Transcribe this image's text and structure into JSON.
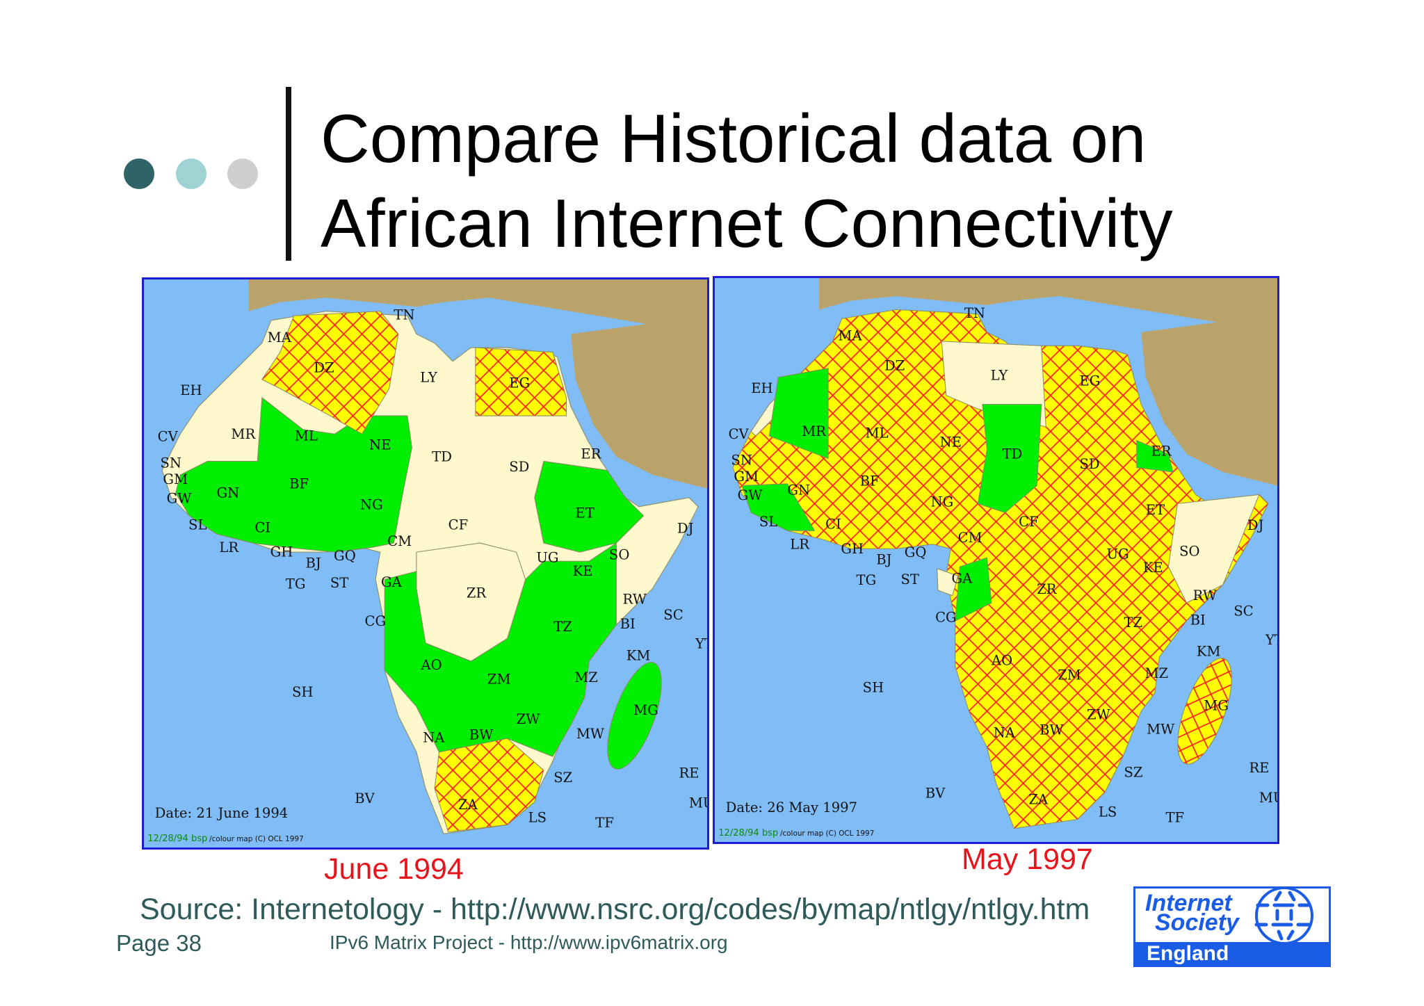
{
  "slide": {
    "title_line1": "Compare Historical data on",
    "title_line2": "African Internet Connectivity",
    "bullet_colors": [
      "#2e6467",
      "#9fd3d3",
      "#cfcfcf"
    ],
    "caption_left": "June 1994",
    "caption_right": "May 1997",
    "source": "Source: Internetology - http://www.nsrc.org/codes/bymap/ntlgy/ntlgy.htm",
    "page": "Page 38",
    "footer": "IPv6 Matrix Project - http://www.ipv6matrix.org"
  },
  "logo": {
    "line1": "Internet",
    "line2": "Society",
    "line3": "England",
    "color": "#1a5ce6"
  },
  "colors": {
    "sea": "#80bdf7",
    "land_other": "#b9a36a",
    "no_connectivity": "#fff8cc",
    "green": "#00ee00",
    "hatch_fill": "#ffff00",
    "hatch_line": "#ff2020"
  },
  "maps": [
    {
      "date": "Date: 21 June 1994",
      "credit_green": "12/28/94 bsp",
      "credit": "/colour map (C) OCL 1997",
      "country_codes": [
        "TN",
        "MA",
        "DZ",
        "LY",
        "EG",
        "EH",
        "MR",
        "ML",
        "NE",
        "TD",
        "SD",
        "ER",
        "CV",
        "SN",
        "GM",
        "GW",
        "GN",
        "BF",
        "NG",
        "ET",
        "DJ",
        "SL",
        "CI",
        "CF",
        "CM",
        "LR",
        "GH",
        "BJ",
        "GQ",
        "UG",
        "KE",
        "SO",
        "TG",
        "ST",
        "GA",
        "ZR",
        "RW",
        "BI",
        "SC",
        "CG",
        "TZ",
        "KM",
        "YT",
        "AO",
        "ZM",
        "MZ",
        "SH",
        "MG",
        "ZW",
        "NA",
        "BW",
        "MW",
        "RE",
        "SZ",
        "BV",
        "MU",
        "ZA",
        "LS",
        "TF"
      ],
      "hatched": [
        "DZ",
        "EG",
        "ZA"
      ],
      "green": [
        "MR-west belt",
        "ML",
        "NE",
        "NG",
        "BF",
        "CI",
        "GH",
        "SN",
        "GN",
        "CM",
        "ET",
        "UG",
        "KE",
        "TZ",
        "AO",
        "ZM",
        "ZW",
        "NA",
        "BW",
        "MZ",
        "MW",
        "MG"
      ]
    },
    {
      "date": "Date: 26 May 1997",
      "credit_green": "12/28/94 bsp",
      "credit": "/colour map (C) OCL 1997",
      "country_codes": [
        "TN",
        "MA",
        "DZ",
        "LY",
        "EG",
        "EH",
        "MR",
        "ML",
        "NE",
        "TD",
        "SD",
        "ER",
        "CV",
        "SN",
        "GM",
        "GW",
        "GN",
        "BF",
        "NG",
        "ET",
        "DJ",
        "SL",
        "CI",
        "CF",
        "CM",
        "LR",
        "GH",
        "BJ",
        "GQ",
        "UG",
        "KE",
        "SO",
        "TG",
        "ST",
        "GA",
        "ZR",
        "RW",
        "BI",
        "SC",
        "CG",
        "TZ",
        "KM",
        "YT",
        "AO",
        "ZM",
        "MZ",
        "SH",
        "MG",
        "ZW",
        "NA",
        "BW",
        "MW",
        "RE",
        "SZ",
        "BV",
        "MU",
        "ZA",
        "LS",
        "TF"
      ],
      "hatched": [
        "MA",
        "DZ",
        "EG",
        "ML",
        "NE",
        "SD",
        "ET",
        "NG",
        "BF",
        "CF",
        "CM",
        "ZR",
        "KE",
        "TZ",
        "AO",
        "ZM",
        "MZ",
        "ZW",
        "NA",
        "BW",
        "ZA",
        "MG"
      ],
      "green": [
        "MR",
        "TD",
        "GN",
        "ER",
        "CG"
      ]
    }
  ]
}
